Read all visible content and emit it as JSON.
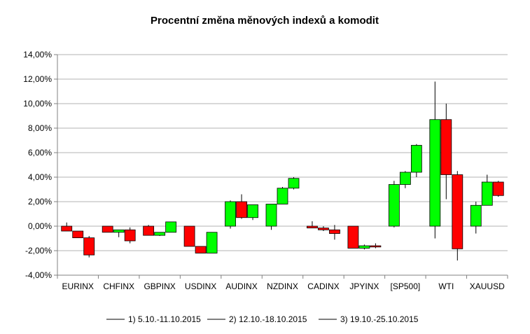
{
  "chart_data": {
    "type": "candlestick",
    "title": "Procentní změna měnových indexů a komodit",
    "xlabel": "",
    "ylabel": "",
    "ylim": [
      -4,
      14
    ],
    "ytick_step": 2,
    "ytick_labels": [
      "-4,00%",
      "-2,00%",
      "0,00%",
      "2,00%",
      "4,00%",
      "6,00%",
      "8,00%",
      "10,00%",
      "12,00%",
      "14,00%"
    ],
    "grid": true,
    "legend_position": "bottom",
    "colors": {
      "up": "#00ff00",
      "down": "#ff0000",
      "grid": "#b3b3b3",
      "axis": "#808080",
      "wick": "#000000"
    },
    "categories": [
      "EURINX",
      "CHFINX",
      "GBPINX",
      "USDINX",
      "AUDINX",
      "NZDINX",
      "CADINX",
      "JPYINX",
      "[SP500]",
      "WTI",
      "XAUUSD"
    ],
    "series": [
      {
        "name": "1) 5.10.-11.10.2015",
        "candles": [
          {
            "open": 0.0,
            "close": -0.4,
            "high": 0.3,
            "low": -0.4
          },
          {
            "open": 0.0,
            "close": -0.5,
            "high": 0.0,
            "low": -0.5
          },
          {
            "open": 0.0,
            "close": -0.75,
            "high": 0.1,
            "low": -0.75
          },
          {
            "open": 0.0,
            "close": -1.65,
            "high": 0.0,
            "low": -1.65
          },
          {
            "open": 0.0,
            "close": 2.0,
            "high": 2.1,
            "low": -0.2
          },
          {
            "open": 0.0,
            "close": 1.8,
            "high": 1.8,
            "low": -0.3
          },
          {
            "open": 0.0,
            "close": -0.15,
            "high": 0.4,
            "low": -0.15
          },
          {
            "open": 0.0,
            "close": -1.8,
            "high": 0.0,
            "low": -1.8
          },
          {
            "open": 0.0,
            "close": 3.4,
            "high": 3.7,
            "low": -0.1
          },
          {
            "open": 0.0,
            "close": 8.7,
            "high": 11.8,
            "low": -1.0
          },
          {
            "open": 0.0,
            "close": 1.7,
            "high": 2.0,
            "low": -0.6
          }
        ]
      },
      {
        "name": "2) 12.10.-18.10.2015",
        "candles": [
          {
            "open": -0.4,
            "close": -0.95,
            "high": -0.4,
            "low": -0.95
          },
          {
            "open": -0.5,
            "close": -0.3,
            "high": -0.3,
            "low": -0.9
          },
          {
            "open": -0.75,
            "close": -0.5,
            "high": -0.5,
            "low": -0.8
          },
          {
            "open": -1.65,
            "close": -2.2,
            "high": -1.65,
            "low": -2.2
          },
          {
            "open": 2.0,
            "close": 0.7,
            "high": 2.6,
            "low": 0.6
          },
          {
            "open": 1.8,
            "close": 3.1,
            "high": 3.2,
            "low": 1.8
          },
          {
            "open": -0.15,
            "close": -0.3,
            "high": 0.0,
            "low": -0.4
          },
          {
            "open": -1.8,
            "close": -1.6,
            "high": -1.5,
            "low": -1.9
          },
          {
            "open": 3.4,
            "close": 4.4,
            "high": 4.5,
            "low": 3.1
          },
          {
            "open": 8.7,
            "close": 4.2,
            "high": 10.0,
            "low": 2.2
          },
          {
            "open": 1.7,
            "close": 3.6,
            "high": 4.2,
            "low": 1.7
          }
        ]
      },
      {
        "name": "3) 19.10.-25.10.2015",
        "candles": [
          {
            "open": -0.95,
            "close": -2.35,
            "high": -0.8,
            "low": -2.55
          },
          {
            "open": -0.3,
            "close": -1.2,
            "high": -0.1,
            "low": -1.4
          },
          {
            "open": -0.5,
            "close": 0.35,
            "high": 0.35,
            "low": -0.5
          },
          {
            "open": -2.2,
            "close": -0.5,
            "high": -0.5,
            "low": -2.2
          },
          {
            "open": 0.7,
            "close": 1.75,
            "high": 1.75,
            "low": 0.5
          },
          {
            "open": 3.1,
            "close": 3.9,
            "high": 4.0,
            "low": 3.0
          },
          {
            "open": -0.3,
            "close": -0.6,
            "high": 0.1,
            "low": -1.1
          },
          {
            "open": -1.6,
            "close": -1.7,
            "high": -1.4,
            "low": -1.8
          },
          {
            "open": 4.4,
            "close": 6.6,
            "high": 6.7,
            "low": 4.0
          },
          {
            "open": 4.2,
            "close": -1.85,
            "high": 4.5,
            "low": -2.8
          },
          {
            "open": 3.6,
            "close": 2.5,
            "high": 3.7,
            "low": 2.4
          }
        ]
      }
    ]
  }
}
